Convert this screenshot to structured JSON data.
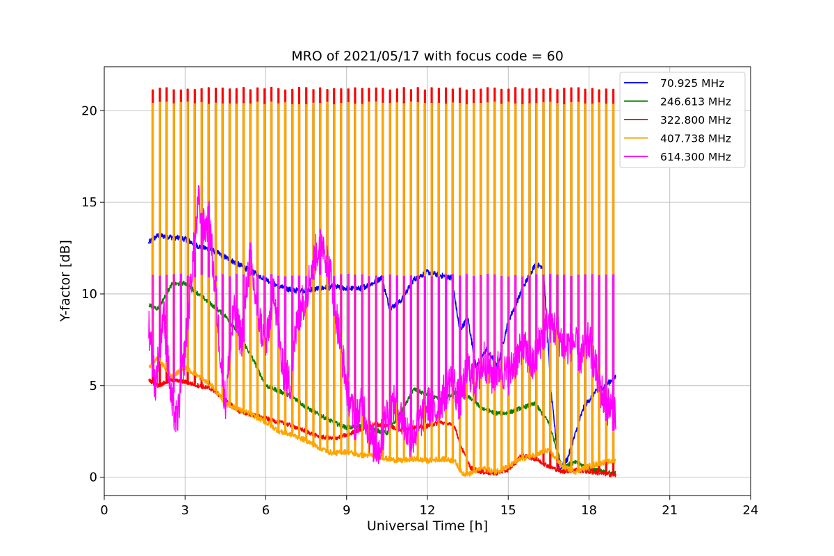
{
  "chart_data": {
    "type": "line",
    "title": "MRO of 2021/05/17 with focus code = 60",
    "xlabel": "Universal Time [h]",
    "ylabel": "Y-factor [dB]",
    "xlim": [
      0,
      24
    ],
    "ylim": [
      -1.0,
      22.4
    ],
    "xticks": [
      0,
      3,
      6,
      9,
      12,
      15,
      18,
      21,
      24
    ],
    "yticks": [
      0,
      5,
      10,
      15,
      20
    ],
    "grid": true,
    "legend_position": "top-right",
    "spikes": {
      "start_h": 1.65,
      "end_h": 19.0,
      "count": 67
    },
    "series": [
      {
        "name": " 70.925 MHz",
        "color": "#0000ff",
        "spike_value": 11.0,
        "x": [
          1.65,
          2.0,
          2.5,
          3.0,
          3.5,
          4.0,
          4.5,
          5.0,
          5.5,
          6.0,
          6.5,
          7.0,
          7.5,
          8.0,
          8.5,
          9.0,
          9.5,
          10.0,
          10.3,
          10.6,
          11.0,
          11.5,
          12.0,
          12.5,
          12.9,
          13.2,
          13.5,
          13.8,
          14.2,
          14.6,
          15.0,
          15.3,
          15.6,
          16.0,
          16.3,
          16.6,
          16.9,
          17.2,
          17.5,
          17.8,
          18.2,
          18.6,
          19.0
        ],
        "y": [
          12.8,
          13.2,
          13.1,
          13.0,
          12.6,
          12.4,
          12.0,
          11.6,
          11.2,
          10.8,
          10.4,
          10.2,
          10.2,
          10.3,
          10.4,
          10.3,
          10.3,
          10.6,
          10.9,
          9.2,
          9.6,
          10.8,
          11.2,
          11.0,
          10.9,
          8.0,
          8.7,
          6.0,
          7.0,
          6.0,
          8.5,
          9.5,
          10.5,
          11.6,
          11.5,
          4.5,
          0.4,
          1.0,
          2.4,
          3.8,
          4.6,
          5.0,
          5.5
        ]
      },
      {
        "name": "246.613 MHz",
        "color": "#008000",
        "spike_value": 20.4,
        "x": [
          1.65,
          2.0,
          2.5,
          3.0,
          3.5,
          4.0,
          4.5,
          5.0,
          5.5,
          6.0,
          6.5,
          7.0,
          7.5,
          8.0,
          8.5,
          9.0,
          9.5,
          10.0,
          10.5,
          11.0,
          11.5,
          12.0,
          12.5,
          13.0,
          13.5,
          14.0,
          14.5,
          15.0,
          15.5,
          16.0,
          16.5,
          17.0,
          17.5,
          18.0,
          18.5,
          19.0
        ],
        "y": [
          9.4,
          9.2,
          10.5,
          10.6,
          10.0,
          9.4,
          8.8,
          7.8,
          6.5,
          5.0,
          4.7,
          4.4,
          3.8,
          3.4,
          3.0,
          2.7,
          2.8,
          2.6,
          2.4,
          3.5,
          4.8,
          4.5,
          4.2,
          4.6,
          4.4,
          3.8,
          3.5,
          3.5,
          3.8,
          4.0,
          3.0,
          0.6,
          0.8,
          0.5,
          0.3,
          0.2
        ]
      },
      {
        "name": "322.800 MHz",
        "color": "#ff0000",
        "spike_value": 21.2,
        "x": [
          1.65,
          2.0,
          2.5,
          3.0,
          3.5,
          4.0,
          4.5,
          5.0,
          5.5,
          6.0,
          6.5,
          7.0,
          7.5,
          8.0,
          8.5,
          9.0,
          9.5,
          10.0,
          10.5,
          11.0,
          11.5,
          12.0,
          12.5,
          13.0,
          13.3,
          13.6,
          14.0,
          14.5,
          15.0,
          15.5,
          16.0,
          16.5,
          17.0,
          17.5,
          18.0,
          18.5,
          19.0
        ],
        "y": [
          5.3,
          5.0,
          5.3,
          5.2,
          5.0,
          4.8,
          4.2,
          3.6,
          3.4,
          3.2,
          3.0,
          2.8,
          2.5,
          2.2,
          2.1,
          2.3,
          2.6,
          2.9,
          2.8,
          2.6,
          2.7,
          2.8,
          3.0,
          2.8,
          1.5,
          0.5,
          0.3,
          0.2,
          0.4,
          1.2,
          1.0,
          0.6,
          0.3,
          0.4,
          0.3,
          0.2,
          0.1
        ]
      },
      {
        "name": "407.738 MHz",
        "color": "#ffa500",
        "spike_value": 20.4,
        "x": [
          1.65,
          2.0,
          2.5,
          3.0,
          3.5,
          4.0,
          4.5,
          5.0,
          5.5,
          6.0,
          6.5,
          7.0,
          7.5,
          8.0,
          8.5,
          9.0,
          9.5,
          10.0,
          10.5,
          11.0,
          11.5,
          12.0,
          12.5,
          13.0,
          13.3,
          13.6,
          14.0,
          14.5,
          15.0,
          15.5,
          16.0,
          16.5,
          17.0,
          17.5,
          18.0,
          18.5,
          19.0
        ],
        "y": [
          6.0,
          6.5,
          5.5,
          6.0,
          5.5,
          5.0,
          4.0,
          3.7,
          3.4,
          3.0,
          2.5,
          2.3,
          2.0,
          1.6,
          1.3,
          1.4,
          1.2,
          1.2,
          1.0,
          0.9,
          1.0,
          0.9,
          1.0,
          0.9,
          0.2,
          0.2,
          0.5,
          0.3,
          0.6,
          1.0,
          1.2,
          1.5,
          0.6,
          0.3,
          0.6,
          0.8,
          0.9
        ]
      },
      {
        "name": "614.300 MHz",
        "color": "#ff00ff",
        "spike_value": 11.0,
        "x": [
          1.65,
          1.9,
          2.2,
          2.5,
          2.7,
          3.0,
          3.3,
          3.5,
          3.7,
          3.9,
          4.1,
          4.3,
          4.5,
          4.8,
          5.1,
          5.4,
          5.7,
          6.0,
          6.3,
          6.6,
          6.9,
          7.2,
          7.5,
          7.8,
          8.1,
          8.4,
          8.7,
          9.0,
          9.3,
          9.6,
          9.9,
          10.2,
          10.5,
          10.8,
          11.1,
          11.4,
          11.7,
          12.0,
          12.3,
          12.6,
          12.9,
          13.2,
          13.5,
          13.8,
          14.1,
          14.4,
          14.7,
          15.0,
          15.3,
          15.6,
          15.9,
          16.2,
          16.5,
          16.8,
          17.1,
          17.4,
          17.7,
          18.0,
          18.3,
          18.6,
          19.0
        ],
        "y": [
          8.5,
          5.0,
          9.0,
          4.0,
          3.0,
          7.0,
          12.0,
          15.0,
          13.5,
          14.0,
          10.5,
          7.0,
          4.0,
          9.0,
          7.5,
          12.0,
          9.0,
          7.0,
          10.5,
          6.0,
          5.0,
          9.0,
          10.0,
          12.0,
          13.0,
          11.0,
          8.0,
          5.0,
          3.0,
          4.0,
          2.0,
          1.5,
          3.5,
          4.0,
          3.0,
          2.0,
          3.0,
          4.0,
          3.5,
          4.5,
          5.5,
          4.0,
          6.0,
          5.0,
          6.5,
          5.5,
          6.0,
          5.5,
          6.5,
          7.0,
          6.0,
          7.5,
          8.5,
          8.0,
          7.0,
          7.5,
          6.5,
          7.5,
          5.5,
          4.0,
          3.5
        ]
      }
    ]
  }
}
